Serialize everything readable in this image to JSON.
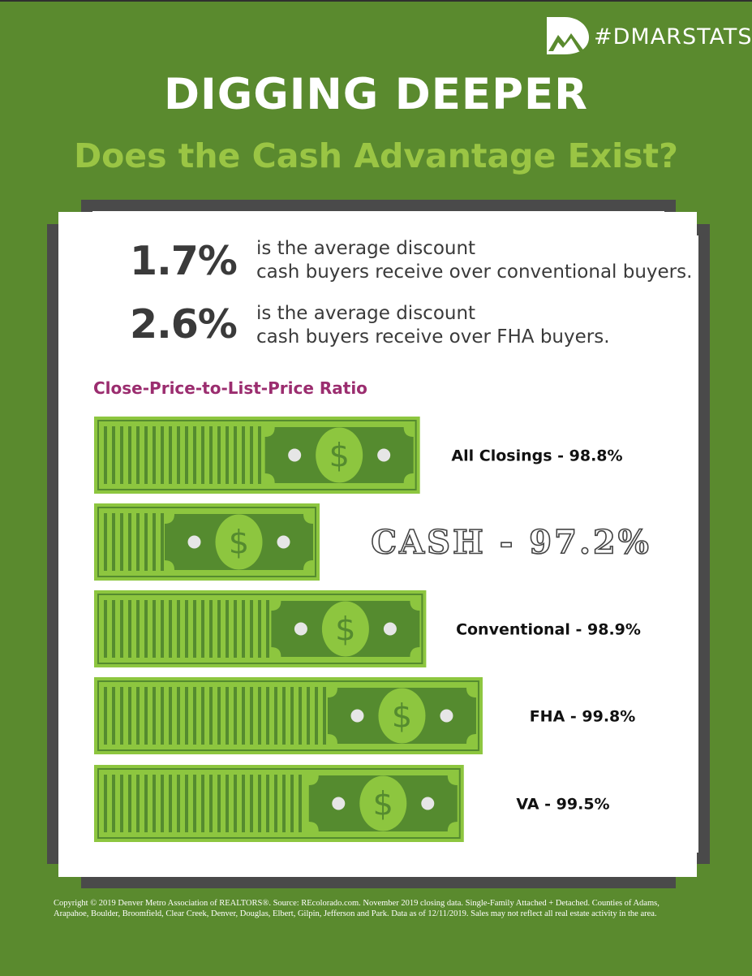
{
  "header": {
    "hashtag": "#DMARSTATS",
    "title": "DIGGING DEEPER",
    "subtitle": "Does the Cash Advantage Exist?"
  },
  "stats": [
    {
      "value": "1.7%",
      "line1": "is the average discount",
      "line2": "cash buyers receive over conventional buyers."
    },
    {
      "value": "2.6%",
      "line1": "is the average discount",
      "line2": "cash buyers receive over FHA buyers."
    }
  ],
  "chart_data": {
    "type": "bar",
    "orientation": "horizontal",
    "title": "Close-Price-to-List-Price Ratio",
    "categories": [
      "All Closings",
      "CASH",
      "Conventional",
      "FHA",
      "VA"
    ],
    "values": [
      98.8,
      97.2,
      98.9,
      99.8,
      99.5
    ],
    "labels": [
      "All Closings - 98.8%",
      "CASH - 97.2%",
      "Conventional - 98.9%",
      "FHA - 99.8%",
      "VA - 99.5%"
    ],
    "unit": "%",
    "highlight": "CASH",
    "grid": false
  },
  "footer": {
    "copyright": "Copyright © 2019 Denver Metro Association of REALTORS®. Source: REcolorado.com. November 2019 closing data. Single-Family Attached + Detached. Counties of Adams, Arapahoe, Boulder, Broomfield, Clear Creek, Denver, Douglas, Elbert, Gilpin, Jefferson and Park. Data as of 12/11/2019. Sales may not reflect all real estate activity in the area."
  },
  "colors": {
    "background": "#5a8a2e",
    "accent_green": "#9ac544",
    "bill_light": "#8dc63f",
    "bill_dark": "#558b2f",
    "heading_purple": "#9b2d6f",
    "frame": "#4a4a4a"
  },
  "icons": [
    "dmar-logo-icon",
    "dollar-bill-icon"
  ]
}
